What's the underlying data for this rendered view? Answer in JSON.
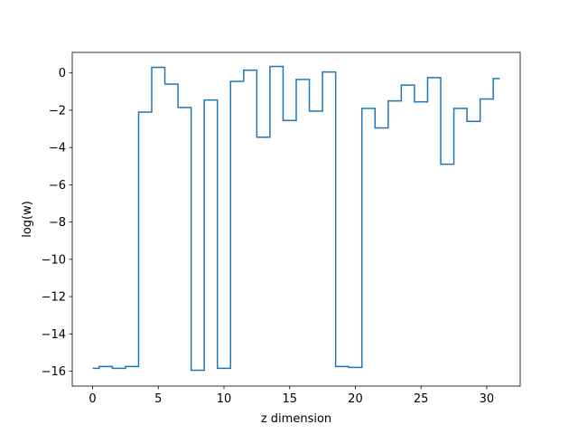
{
  "chart_data": {
    "type": "line",
    "drawstyle": "steps-mid",
    "title": "",
    "xlabel": "z dimension",
    "ylabel": "log(w)",
    "xlim": [
      -1.55,
      32.55
    ],
    "ylim": [
      -16.8,
      1.1
    ],
    "xticks": [
      0,
      5,
      10,
      15,
      20,
      25,
      30
    ],
    "yticks": [
      0,
      -2,
      -4,
      -6,
      -8,
      -10,
      -12,
      -14,
      -16
    ],
    "grid": false,
    "line_color": "#1f77b4",
    "x": [
      0,
      1,
      2,
      3,
      4,
      5,
      6,
      7,
      8,
      9,
      10,
      11,
      12,
      13,
      14,
      15,
      16,
      17,
      18,
      19,
      20,
      21,
      22,
      23,
      24,
      25,
      26,
      27,
      28,
      29,
      30,
      31
    ],
    "y": [
      -15.85,
      -15.75,
      -15.85,
      -15.75,
      -2.1,
      0.3,
      -0.6,
      -1.85,
      -15.95,
      -1.45,
      -15.85,
      -0.45,
      0.15,
      -3.45,
      0.35,
      -2.55,
      -0.35,
      -2.05,
      0.05,
      -15.75,
      -15.8,
      -1.9,
      -2.95,
      -1.5,
      -0.65,
      -1.55,
      -0.25,
      -4.9,
      -1.9,
      -2.6,
      -1.4,
      -0.3
    ]
  }
}
